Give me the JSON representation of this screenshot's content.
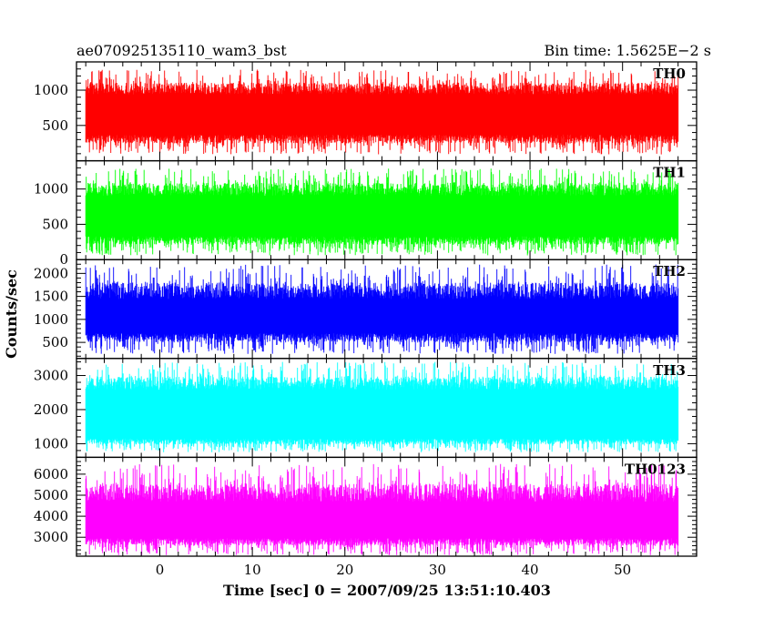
{
  "title_left": "ae070925135110_wam3_bst",
  "title_right": "Bin time: 1.5625E−2 s",
  "xlabel": "Time [sec] 0 = 2007/09/25 13:51:10.403",
  "ylabel": "Counts/sec",
  "chart_data": [
    {
      "type": "line",
      "panel": "TH0",
      "series": [
        {
          "name": "TH0",
          "color": "#ff0000",
          "noise_profile": {
            "base_low": 370,
            "base_high": 990,
            "spike_high_max": 1290,
            "spike_low_min": 90
          }
        }
      ],
      "ylim": [
        0,
        1400
      ],
      "yticks": [
        500,
        1000
      ],
      "xlim": [
        -9,
        58
      ],
      "x_range": [
        -8,
        56
      ],
      "xticks": [
        0,
        10,
        20,
        30,
        40,
        50
      ],
      "bin_time": 0.015625,
      "grid": false
    },
    {
      "type": "line",
      "panel": "TH1",
      "series": [
        {
          "name": "TH1",
          "color": "#00ff00",
          "noise_profile": {
            "base_low": 330,
            "base_high": 960,
            "spike_high_max": 1290,
            "spike_low_min": 60
          }
        }
      ],
      "ylim": [
        0,
        1400
      ],
      "yticks": [
        0,
        500,
        1000
      ],
      "xlim": [
        -9,
        58
      ],
      "x_range": [
        -8,
        56
      ],
      "xticks": [
        0,
        10,
        20,
        30,
        40,
        50
      ],
      "bin_time": 0.015625,
      "grid": false
    },
    {
      "type": "line",
      "panel": "TH2",
      "series": [
        {
          "name": "TH2",
          "color": "#0000ff",
          "noise_profile": {
            "base_low": 700,
            "base_high": 1550,
            "spike_high_max": 2200,
            "spike_low_min": 250
          }
        }
      ],
      "ylim": [
        150,
        2300
      ],
      "yticks": [
        500,
        1000,
        1500,
        2000
      ],
      "xlim": [
        -9,
        58
      ],
      "x_range": [
        -8,
        56
      ],
      "xticks": [
        0,
        10,
        20,
        30,
        40,
        50
      ],
      "bin_time": 0.015625,
      "grid": false
    },
    {
      "type": "line",
      "panel": "TH3",
      "series": [
        {
          "name": "TH3",
          "color": "#00ffff",
          "noise_profile": {
            "base_low": 1150,
            "base_high": 2700,
            "spike_high_max": 3400,
            "spike_low_min": 750
          }
        }
      ],
      "ylim": [
        600,
        3500
      ],
      "yticks": [
        1000,
        2000,
        3000
      ],
      "xlim": [
        -9,
        58
      ],
      "x_range": [
        -8,
        56
      ],
      "xticks": [
        0,
        10,
        20,
        30,
        40,
        50
      ],
      "bin_time": 0.015625,
      "grid": false
    },
    {
      "type": "line",
      "panel": "TH0123",
      "series": [
        {
          "name": "TH0123",
          "color": "#ff00ff",
          "noise_profile": {
            "base_low": 2950,
            "base_high": 4950,
            "spike_high_max": 6500,
            "spike_low_min": 2150
          }
        }
      ],
      "ylim": [
        2100,
        6800
      ],
      "yticks": [
        3000,
        4000,
        5000,
        6000
      ],
      "xlim": [
        -9,
        58
      ],
      "x_range": [
        -8,
        56
      ],
      "xticks": [
        0,
        10,
        20,
        30,
        40,
        50
      ],
      "bin_time": 0.015625,
      "grid": false
    }
  ]
}
